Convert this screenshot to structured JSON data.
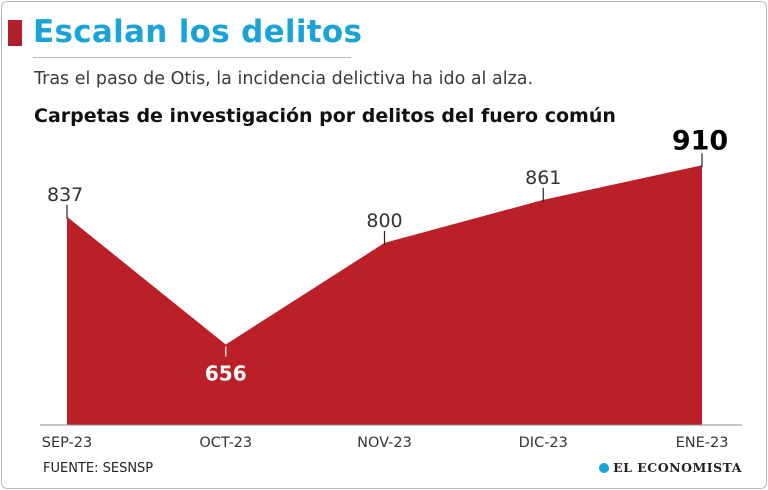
{
  "header": {
    "title": "Escalan los delitos",
    "subtitle": "Tras el paso de Otis, la incidencia delictiva ha ido al alza."
  },
  "chart_data": {
    "type": "area",
    "title": "Carpetas de investigación por delitos del fuero común",
    "categories": [
      "SEP-23",
      "OCT-23",
      "NOV-23",
      "DIC-23",
      "ENE-23"
    ],
    "values": [
      837,
      656,
      800,
      861,
      910
    ],
    "value_labels": [
      "837",
      "656",
      "800",
      "861",
      "910"
    ],
    "ylim": [
      542,
      960
    ],
    "xlabel": "",
    "ylabel": "",
    "grid": false,
    "color": "#bb2028"
  },
  "footer": {
    "source": "FUENTE: SESNSP",
    "brand": "EL ECONOMISTA"
  },
  "colors": {
    "accent": "#b21f2c",
    "title": "#1aa3d6",
    "area": "#bb2028"
  }
}
